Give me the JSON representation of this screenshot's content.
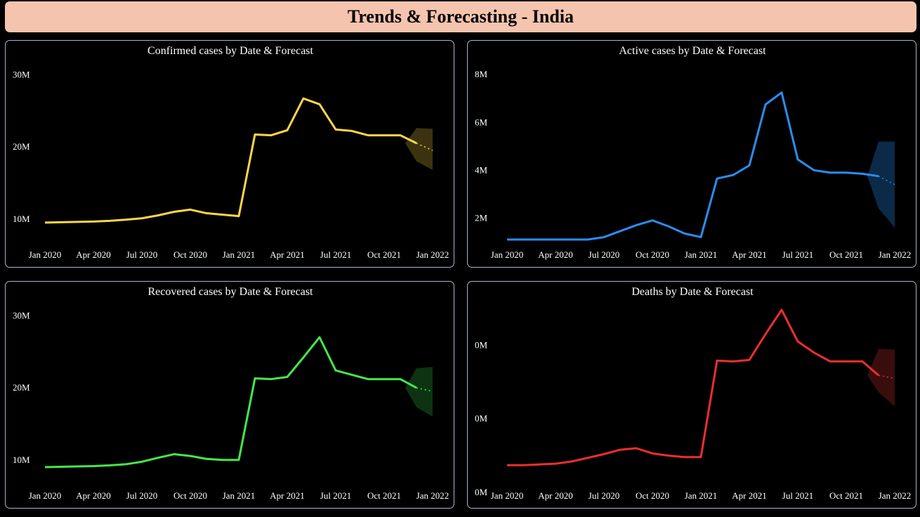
{
  "page_title": "Trends & Forecasting - India",
  "chart_data": [
    {
      "type": "line",
      "title": "Confirmed cases by Date & Forecast",
      "color": "#ffd54a",
      "band_color": "#3b3310",
      "x_labels": [
        "Jan 2020",
        "Apr 2020",
        "Jul 2020",
        "Oct 2020",
        "Jan 2021",
        "Apr 2021",
        "Jul 2021",
        "Oct 2021",
        "Jan 2022"
      ],
      "y_ticks": [
        "10M",
        "20M",
        "30M"
      ],
      "y_tick_values": [
        10,
        20,
        30
      ],
      "ylim": [
        5.5,
        31
      ],
      "x": [
        "2020-01",
        "2020-02",
        "2020-03",
        "2020-04",
        "2020-05",
        "2020-06",
        "2020-07",
        "2020-08",
        "2020-09",
        "2020-10",
        "2020-11",
        "2020-12",
        "2021-01",
        "2021-02",
        "2021-03",
        "2021-04",
        "2021-05",
        "2021-06",
        "2021-07",
        "2021-08",
        "2021-09",
        "2021-10",
        "2021-11",
        "2021-12"
      ],
      "values": [
        9.5,
        9.55,
        9.6,
        9.65,
        9.75,
        9.9,
        10.1,
        10.5,
        11.0,
        11.3,
        10.8,
        10.6,
        10.4,
        21.7,
        21.6,
        22.3,
        26.7,
        25.9,
        22.4,
        22.2,
        21.6,
        21.6,
        21.6,
        20.5
      ],
      "forecast": {
        "x": [
          "2021-12",
          "2022-01"
        ],
        "values": [
          20.5,
          19.5
        ],
        "upper": [
          22.6,
          22.5
        ],
        "lower": [
          18.0,
          16.8
        ]
      }
    },
    {
      "type": "line",
      "title": "Active cases by Date & Forecast",
      "color": "#2a8ef0",
      "band_color": "#0b2a47",
      "x_labels": [
        "Jan 2020",
        "Apr 2020",
        "Jul 2020",
        "Oct 2020",
        "Jan 2021",
        "Apr 2021",
        "Jul 2021",
        "Oct 2021",
        "Jan 2022"
      ],
      "y_ticks": [
        "2M",
        "4M",
        "6M",
        "8M"
      ],
      "y_tick_values": [
        2,
        4,
        6,
        8
      ],
      "ylim": [
        0.6,
        8.3
      ],
      "x": [
        "2020-01",
        "2020-02",
        "2020-03",
        "2020-04",
        "2020-05",
        "2020-06",
        "2020-07",
        "2020-08",
        "2020-09",
        "2020-10",
        "2020-11",
        "2020-12",
        "2021-01",
        "2021-02",
        "2021-03",
        "2021-04",
        "2021-05",
        "2021-06",
        "2021-07",
        "2021-08",
        "2021-09",
        "2021-10",
        "2021-11",
        "2021-12"
      ],
      "values": [
        1.1,
        1.1,
        1.1,
        1.1,
        1.1,
        1.1,
        1.2,
        1.45,
        1.7,
        1.9,
        1.65,
        1.35,
        1.2,
        3.65,
        3.8,
        4.2,
        6.75,
        7.25,
        4.45,
        4.0,
        3.9,
        3.9,
        3.85,
        3.75
      ],
      "forecast": {
        "x": [
          "2021-12",
          "2022-01"
        ],
        "values": [
          3.75,
          3.4
        ],
        "upper": [
          5.2,
          5.2
        ],
        "lower": [
          2.4,
          1.6
        ]
      }
    },
    {
      "type": "line",
      "title": "Recovered cases by Date & Forecast",
      "color": "#44e84a",
      "band_color": "#0d3312",
      "x_labels": [
        "Jan 2020",
        "Apr 2020",
        "Jul 2020",
        "Oct 2020",
        "Jan 2021",
        "Apr 2021",
        "Jul 2021",
        "Oct 2021",
        "Jan 2022"
      ],
      "y_ticks": [
        "10M",
        "20M",
        "30M"
      ],
      "y_tick_values": [
        10,
        20,
        30
      ],
      "ylim": [
        5.5,
        31
      ],
      "x": [
        "2020-01",
        "2020-02",
        "2020-03",
        "2020-04",
        "2020-05",
        "2020-06",
        "2020-07",
        "2020-08",
        "2020-09",
        "2020-10",
        "2020-11",
        "2020-12",
        "2021-01",
        "2021-02",
        "2021-03",
        "2021-04",
        "2021-05",
        "2021-06",
        "2021-07",
        "2021-08",
        "2021-09",
        "2021-10",
        "2021-11",
        "2021-12"
      ],
      "values": [
        9.0,
        9.05,
        9.1,
        9.15,
        9.25,
        9.4,
        9.75,
        10.3,
        10.8,
        10.55,
        10.15,
        10.0,
        10.0,
        21.3,
        21.2,
        21.5,
        24.2,
        27.0,
        22.4,
        21.8,
        21.2,
        21.2,
        21.2,
        20.0
      ],
      "forecast": {
        "x": [
          "2021-12",
          "2022-01"
        ],
        "values": [
          20.0,
          19.5
        ],
        "upper": [
          22.7,
          22.9
        ],
        "lower": [
          17.3,
          16.0
        ]
      }
    },
    {
      "type": "line",
      "title": "Deaths by Date & Forecast",
      "color": "#ee2e2e",
      "band_color": "#3a0d0d",
      "x_labels": [
        "Jan 2020",
        "Apr 2020",
        "Jul 2020",
        "Oct 2020",
        "Jan 2021",
        "Apr 2021",
        "Jul 2021",
        "Oct 2021",
        "Jan 2022"
      ],
      "y_ticks": [
        "0M",
        "0M",
        "0M"
      ],
      "y_tick_values": [
        0,
        1,
        2
      ],
      "ylim": [
        0,
        2.5
      ],
      "x": [
        "2020-01",
        "2020-02",
        "2020-03",
        "2020-04",
        "2020-05",
        "2020-06",
        "2020-07",
        "2020-08",
        "2020-09",
        "2020-10",
        "2020-11",
        "2020-12",
        "2021-01",
        "2021-02",
        "2021-03",
        "2021-04",
        "2021-05",
        "2021-06",
        "2021-07",
        "2021-08",
        "2021-09",
        "2021-10",
        "2021-11",
        "2021-12"
      ],
      "values": [
        0.37,
        0.37,
        0.38,
        0.39,
        0.42,
        0.47,
        0.52,
        0.58,
        0.6,
        0.53,
        0.5,
        0.48,
        0.48,
        1.79,
        1.78,
        1.8,
        2.15,
        2.48,
        2.05,
        1.9,
        1.78,
        1.78,
        1.78,
        1.59
      ],
      "forecast": {
        "x": [
          "2021-12",
          "2022-01"
        ],
        "values": [
          1.59,
          1.55
        ],
        "upper": [
          1.95,
          1.94
        ],
        "lower": [
          1.36,
          1.17
        ]
      }
    }
  ]
}
